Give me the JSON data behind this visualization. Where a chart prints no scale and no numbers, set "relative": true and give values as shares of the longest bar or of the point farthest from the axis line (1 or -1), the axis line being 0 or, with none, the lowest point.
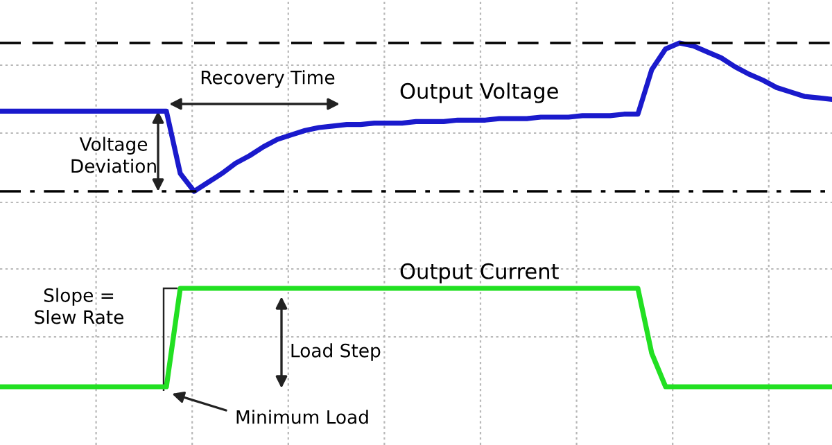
{
  "chart_data": [
    {
      "type": "line",
      "relative": true,
      "grid": true,
      "categories": [
        null,
        null,
        null,
        null,
        null,
        null,
        null,
        null,
        null,
        null,
        null,
        null,
        null,
        null,
        null,
        null,
        null,
        null,
        null,
        null,
        null,
        null,
        null,
        null,
        null,
        null,
        null,
        null,
        null,
        null,
        null,
        null,
        null,
        null,
        null,
        null,
        null,
        null,
        null,
        null,
        null,
        null,
        null,
        null,
        null,
        null,
        null,
        null,
        null,
        null,
        null,
        null,
        null,
        null,
        null,
        null,
        null,
        null,
        null,
        null,
        null
      ],
      "series": [
        {
          "name": "Output Voltage",
          "color": "#1a1acc",
          "values": [
            0.54,
            0.54,
            0.54,
            0.54,
            0.54,
            0.54,
            0.54,
            0.54,
            0.54,
            0.54,
            0.54,
            0.54,
            0.54,
            0.12,
            0,
            0.06,
            0.12,
            0.19,
            0.24,
            0.3,
            0.35,
            0.38,
            0.41,
            0.43,
            0.44,
            0.45,
            0.45,
            0.46,
            0.46,
            0.46,
            0.47,
            0.47,
            0.47,
            0.48,
            0.48,
            0.48,
            0.49,
            0.49,
            0.49,
            0.5,
            0.5,
            0.5,
            0.51,
            0.51,
            0.51,
            0.52,
            0.52,
            0.82,
            0.96,
            1,
            0.98,
            0.94,
            0.9,
            0.84,
            0.79,
            0.75,
            0.7,
            0.67,
            0.64,
            0.63,
            0.62
          ]
        }
      ],
      "ref_lines": [
        {
          "axis": "y",
          "value": 1,
          "line_style": "dashed",
          "color": "#000000"
        },
        {
          "axis": "y",
          "value": 0,
          "line_style": "dashdot",
          "color": "#000000"
        }
      ],
      "annotations": [
        "Recovery Time",
        "Voltage\nDeviation"
      ]
    },
    {
      "type": "line",
      "relative": true,
      "grid": true,
      "categories": [
        null,
        null,
        null,
        null,
        null,
        null,
        null,
        null,
        null,
        null,
        null,
        null,
        null,
        null,
        null,
        null,
        null,
        null,
        null,
        null,
        null,
        null,
        null,
        null,
        null,
        null,
        null,
        null,
        null,
        null,
        null,
        null,
        null,
        null,
        null,
        null,
        null,
        null,
        null,
        null,
        null,
        null,
        null,
        null,
        null,
        null,
        null,
        null,
        null,
        null,
        null,
        null,
        null,
        null,
        null,
        null,
        null,
        null,
        null,
        null,
        null
      ],
      "series": [
        {
          "name": "Output Current",
          "color": "#22e022",
          "values": [
            0,
            0,
            0,
            0,
            0,
            0,
            0,
            0,
            0,
            0,
            0,
            0,
            0,
            1,
            1,
            1,
            1,
            1,
            1,
            1,
            1,
            1,
            1,
            1,
            1,
            1,
            1,
            1,
            1,
            1,
            1,
            1,
            1,
            1,
            1,
            1,
            1,
            1,
            1,
            1,
            1,
            1,
            1,
            1,
            1,
            1,
            1,
            0.34,
            0,
            0,
            0,
            0,
            0,
            0,
            0,
            0,
            0,
            0,
            0,
            0,
            0
          ]
        }
      ],
      "annotations": [
        "Slope =\nSlew Rate",
        "Load Step",
        "Minimum Load"
      ]
    }
  ]
}
